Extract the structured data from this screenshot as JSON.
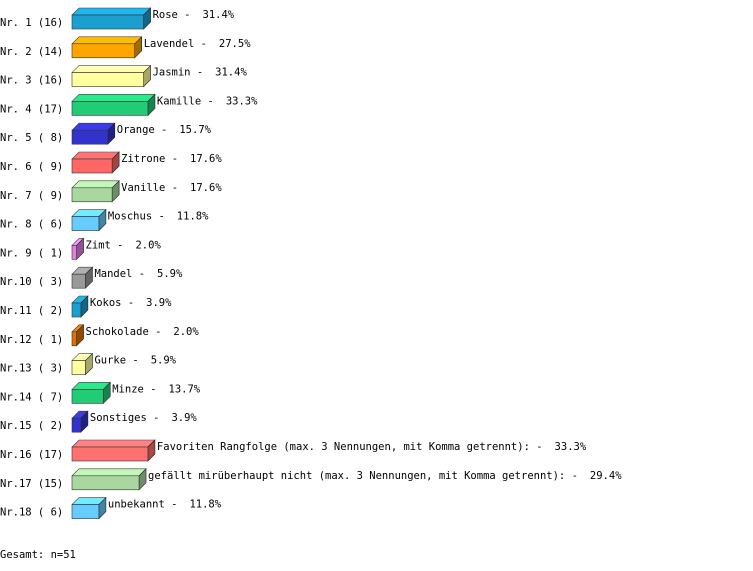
{
  "chart_data": {
    "type": "bar3d",
    "row_labels": [
      "Nr. 1 (16)",
      "Nr. 2 (14)",
      "Nr. 3 (16)",
      "Nr. 4 (17)",
      "Nr. 5 ( 8)",
      "Nr. 6 ( 9)",
      "Nr. 7 ( 9)",
      "Nr. 8 ( 6)",
      "Nr. 9 ( 1)",
      "Nr.10 ( 3)",
      "Nr.11 ( 2)",
      "Nr.12 ( 1)",
      "Nr.13 ( 3)",
      "Nr.14 ( 7)",
      "Nr.15 ( 2)",
      "Nr.16 (17)",
      "Nr.17 (15)",
      "Nr.18 ( 6)"
    ],
    "categories": [
      "Rose -",
      "Lavendel -",
      "Jasmin -",
      "Kamille -",
      "Orange -",
      "Zitrone -",
      "Vanille -",
      "Moschus -",
      "Zimt -",
      "Mandel -",
      "Kokos -",
      "Schokolade -",
      "Gurke -",
      "Minze -",
      "Sonstiges -",
      "Favoriten Rangfolge (max. 3 Nennungen, mit Komma getrennt): -",
      "gefällt mirüberhaupt nicht (max. 3 Nennungen, mit Komma getrennt): -",
      "unbekannt -"
    ],
    "values": [
      31.4,
      27.5,
      31.4,
      33.3,
      15.7,
      17.6,
      17.6,
      11.8,
      2.0,
      5.9,
      3.9,
      2.0,
      5.9,
      13.7,
      3.9,
      33.3,
      29.4,
      11.8
    ],
    "value_labels": [
      "31.4%",
      "27.5%",
      "31.4%",
      "33.3%",
      "15.7%",
      "17.6%",
      "17.6%",
      "11.8%",
      "2.0%",
      "5.9%",
      "3.9%",
      "2.0%",
      "5.9%",
      "13.7%",
      "3.9%",
      "33.3%",
      "29.4%",
      "11.8%"
    ],
    "colors": [
      "#1a9fd0",
      "#ffa500",
      "#ffffa0",
      "#22cc77",
      "#3333cc",
      "#ff6666",
      "#a8d8a0",
      "#66ccff",
      "#e080e0",
      "#999999",
      "#1a9fd0",
      "#e07000",
      "#ffffa0",
      "#22cc77",
      "#3333cc",
      "#ff7070",
      "#a8d8a0",
      "#66ccff"
    ],
    "footer": "Gesamt: n=51"
  }
}
